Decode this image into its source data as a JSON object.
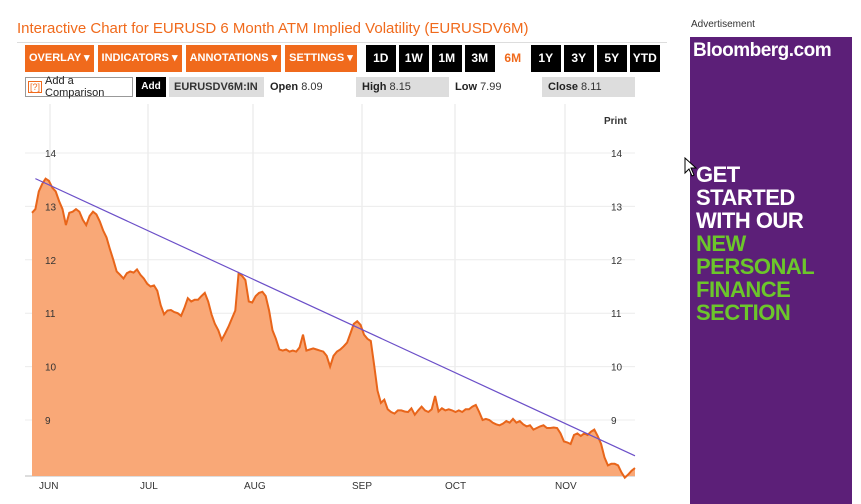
{
  "header": {
    "title": "Interactive Chart for EURUSD 6 Month ATM Implied Volatility (EURUSDV6M)"
  },
  "toolbar": {
    "menus": [
      {
        "label": "OVERLAY ▾"
      },
      {
        "label": "INDICATORS ▾"
      },
      {
        "label": "ANNOTATIONS ▾"
      },
      {
        "label": "SETTINGS ▾"
      }
    ],
    "ranges": [
      "1D",
      "1W",
      "1M",
      "3M",
      "6M",
      "1Y",
      "3Y",
      "5Y",
      "YTD"
    ],
    "active_range": "6M"
  },
  "comparison": {
    "help_icon": "?",
    "label": "Add a Comparison",
    "add_button": "Add",
    "ticker": "EURUSDV6M:IN"
  },
  "stats": {
    "open_label": "Open",
    "open": "8.09",
    "high_label": "High",
    "high": "8.15",
    "low_label": "Low",
    "low": "7.99",
    "close_label": "Close",
    "close": "8.11"
  },
  "print_label": "Print",
  "ad": {
    "label": "Advertisement",
    "logo": "Bloomberg.com",
    "lines_white": [
      "GET",
      "STARTED",
      "WITH OUR"
    ],
    "lines_green": [
      "NEW",
      "PERSONAL",
      "FINANCE",
      "SECTION"
    ],
    "bg_color": "#5c1f78",
    "green_color": "#6cc62b"
  },
  "colors": {
    "accent": "#f06a1c",
    "area_fill": "#f9a877",
    "line": "#e8651a",
    "trend": "#6b4fc8"
  },
  "chart_data": {
    "type": "area",
    "ylim": [
      7.8,
      14.4
    ],
    "y_ticks": [
      9,
      10,
      11,
      12,
      13,
      14
    ],
    "x_labels": [
      "JUN",
      "JUL",
      "AUG",
      "SEP",
      "OCT",
      "NOV"
    ],
    "trendline": [
      [
        1,
        13.52
      ],
      [
        128,
        8.33
      ]
    ],
    "values": [
      12.88,
      12.95,
      13.28,
      13.42,
      13.52,
      13.48,
      13.35,
      13.28,
      13.1,
      12.95,
      12.65,
      12.88,
      12.9,
      12.95,
      12.9,
      12.75,
      12.65,
      12.82,
      12.9,
      12.85,
      12.72,
      12.55,
      12.42,
      12.2,
      12.0,
      11.78,
      11.72,
      11.65,
      11.75,
      11.78,
      11.76,
      11.82,
      11.72,
      11.65,
      11.55,
      11.5,
      11.52,
      11.42,
      11.15,
      10.98,
      11.05,
      11.06,
      11.02,
      11.0,
      10.95,
      11.1,
      11.28,
      11.22,
      11.25,
      11.25,
      11.32,
      11.38,
      11.22,
      10.98,
      10.8,
      10.68,
      10.5,
      10.62,
      10.75,
      10.9,
      11.05,
      11.75,
      11.7,
      11.62,
      11.22,
      11.2,
      11.32,
      11.38,
      11.4,
      11.32,
      11.05,
      10.68,
      10.52,
      10.32,
      10.3,
      10.32,
      10.28,
      10.3,
      10.28,
      10.36,
      10.6,
      10.3,
      10.32,
      10.34,
      10.32,
      10.3,
      10.28,
      10.2,
      10.0,
      10.2,
      10.28,
      10.32,
      10.38,
      10.45,
      10.62,
      10.8,
      10.85,
      10.78,
      10.6,
      10.52,
      10.48,
      10.02,
      9.55,
      9.32,
      9.38,
      9.2,
      9.15,
      9.12,
      9.18,
      9.18,
      9.16,
      9.15,
      9.22,
      9.1,
      9.18,
      9.25,
      9.18,
      9.15,
      9.2,
      9.45,
      9.16,
      9.22,
      9.18,
      9.2,
      9.18,
      9.15,
      9.18,
      9.15,
      9.2,
      9.2,
      9.25,
      9.28,
      9.15,
      9.0,
      9.02,
      9.0,
      8.95,
      8.92,
      8.9,
      8.93,
      8.98,
      8.95,
      9.02,
      8.95,
      8.98,
      8.92,
      8.88,
      8.9,
      8.82,
      8.85,
      8.88,
      8.9,
      8.85,
      8.85,
      8.86,
      8.85,
      8.75,
      8.6,
      8.58,
      8.55,
      8.72,
      8.75,
      8.7,
      8.75,
      8.72,
      8.78,
      8.82,
      8.7,
      8.55,
      8.3,
      8.15,
      8.18,
      8.18,
      8.15,
      8.02,
      7.92,
      7.98,
      8.05,
      8.1
    ]
  }
}
